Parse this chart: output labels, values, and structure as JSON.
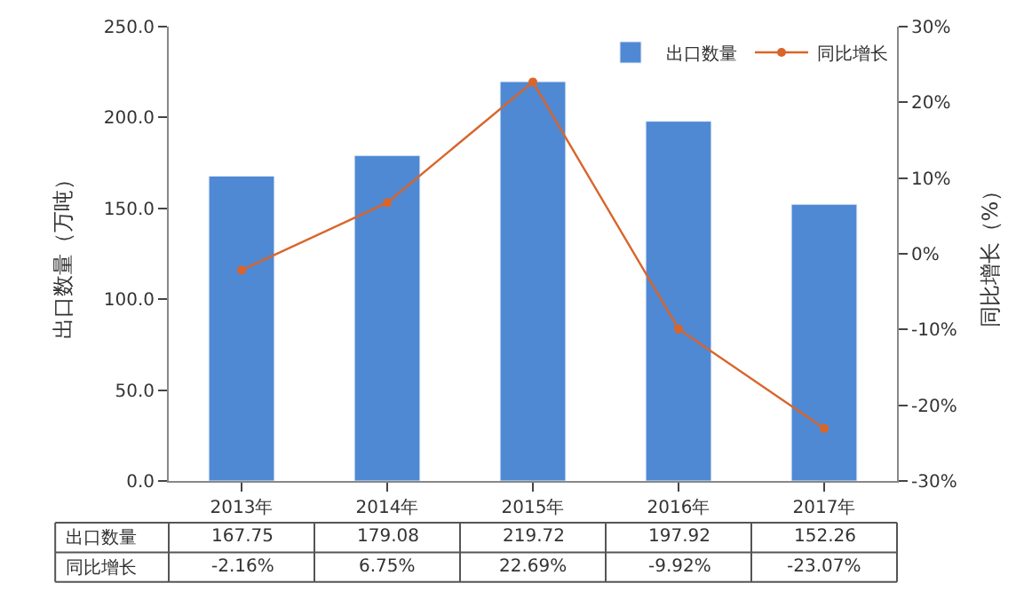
{
  "chart_data": {
    "type": "bar",
    "categories": [
      "2013年",
      "2014年",
      "2015年",
      "2016年",
      "2017年"
    ],
    "ylabel": "出口数量（万吨）",
    "y2label": "同比增长（%）",
    "ylim": [
      0,
      250
    ],
    "yticks": [
      {
        "value": 0,
        "label": "0.0"
      },
      {
        "value": 50,
        "label": "50.0"
      },
      {
        "value": 100,
        "label": "100.0"
      },
      {
        "value": 150,
        "label": "150.0"
      },
      {
        "value": 200,
        "label": "200.0"
      },
      {
        "value": 250,
        "label": "250.0"
      }
    ],
    "y2lim": [
      -30,
      30
    ],
    "y2ticks": [
      {
        "value": -30,
        "label": "-30%"
      },
      {
        "value": -20,
        "label": "-20%"
      },
      {
        "value": -10,
        "label": "-10%"
      },
      {
        "value": 0,
        "label": "0%"
      },
      {
        "value": 10,
        "label": "10%"
      },
      {
        "value": 20,
        "label": "20%"
      },
      {
        "value": 30,
        "label": "30%"
      }
    ],
    "legend": "top right",
    "series": [
      {
        "name": "出口数量",
        "color": "#4f89d4",
        "values": [
          167.75,
          179.08,
          219.72,
          197.92,
          152.26
        ],
        "value_labels": [
          "167.75",
          "179.08",
          "219.72",
          "197.92",
          "152.26"
        ]
      },
      {
        "name": "同比增长",
        "type": "line",
        "axis": "y2",
        "color": "#d9652b",
        "marker": "circle",
        "values": [
          -2.16,
          6.75,
          22.69,
          -9.92,
          -23.07
        ],
        "value_labels": [
          "-2.16%",
          "6.75%",
          "22.69%",
          "-9.92%",
          "-23.07%"
        ]
      }
    ]
  }
}
